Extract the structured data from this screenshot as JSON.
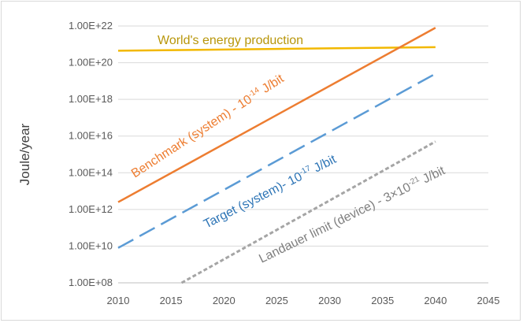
{
  "chart_data": {
    "type": "line",
    "ylabel": "Joule/year",
    "xlabel": "",
    "title": "",
    "y_scale": "log",
    "xlim": [
      2010,
      2045
    ],
    "ylim": [
      100000000.0,
      1e+22
    ],
    "x_ticks": [
      "2010",
      "2015",
      "2020",
      "2025",
      "2030",
      "2035",
      "2040",
      "2045"
    ],
    "y_ticks": [
      "1.00E+08",
      "1.00E+10",
      "1.00E+12",
      "1.00E+14",
      "1.00E+16",
      "1.00E+18",
      "1.00E+20",
      "1.00E+22"
    ],
    "grid": "horizontal",
    "legend": "none",
    "series": [
      {
        "name": "World's energy production",
        "style": "solid",
        "color": "#f2b800",
        "x": [
          2010,
          2040
        ],
        "y": [
          4.5e+20,
          7e+20
        ],
        "label_parts": [
          "World's energy production"
        ]
      },
      {
        "name": "Benchmark (system) - 10-14 J/bit",
        "style": "solid",
        "color": "#ed7d31",
        "x": [
          2010,
          2040
        ],
        "y": [
          2500000000000.0,
          8e+21
        ],
        "label_parts": [
          "Benchmark (system) - 10",
          "-14",
          " J/bit"
        ]
      },
      {
        "name": "Target (system)- 10-17 J/bit",
        "style": "dashed",
        "color": "#5b9bd5",
        "x": [
          2010,
          2040
        ],
        "y": [
          8000000000.0,
          2.5e+19
        ],
        "label_parts": [
          "Target (system)- 10",
          "-17",
          " J/bit"
        ]
      },
      {
        "name": "Landauer limit (device) - 3×10-21 J/bit",
        "style": "dotted",
        "color": "#a5a5a5",
        "x": [
          2016,
          2040
        ],
        "y": [
          100000000.0,
          5000000000000000.0
        ],
        "label_parts": [
          "Landauer limit (device) - 3×10",
          "-21",
          " J/bit"
        ]
      }
    ]
  }
}
